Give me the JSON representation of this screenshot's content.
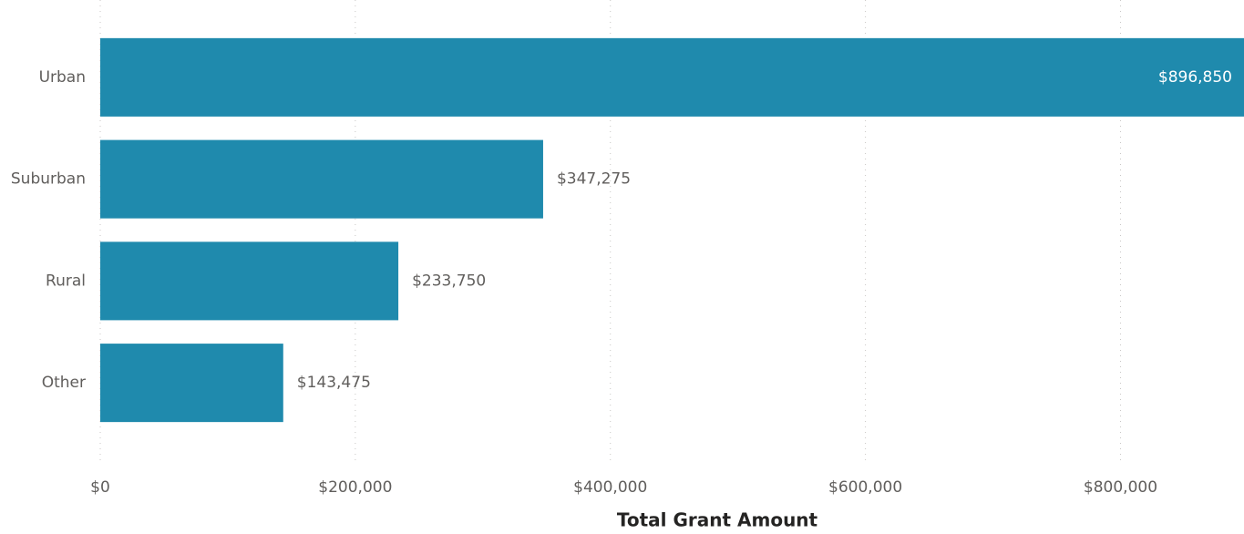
{
  "chart_data": {
    "type": "bar",
    "orientation": "horizontal",
    "x_label": "Total Grant Amount",
    "categories": [
      "Urban",
      "Suburban",
      "Rural",
      "Other"
    ],
    "values": [
      896850,
      347275,
      233750,
      143475
    ],
    "value_labels": [
      "$896,850",
      "$347,275",
      "$233,750",
      "$143,475"
    ],
    "color": "#1f8aad",
    "xlim": [
      0,
      896850
    ],
    "xticks": [
      {
        "value": 0,
        "label": "$0"
      },
      {
        "value": 200000,
        "label": "$200,000"
      },
      {
        "value": 400000,
        "label": "$400,000"
      },
      {
        "value": 600000,
        "label": "$600,000"
      },
      {
        "value": 800000,
        "label": "$800,000"
      }
    ],
    "grid": true
  }
}
